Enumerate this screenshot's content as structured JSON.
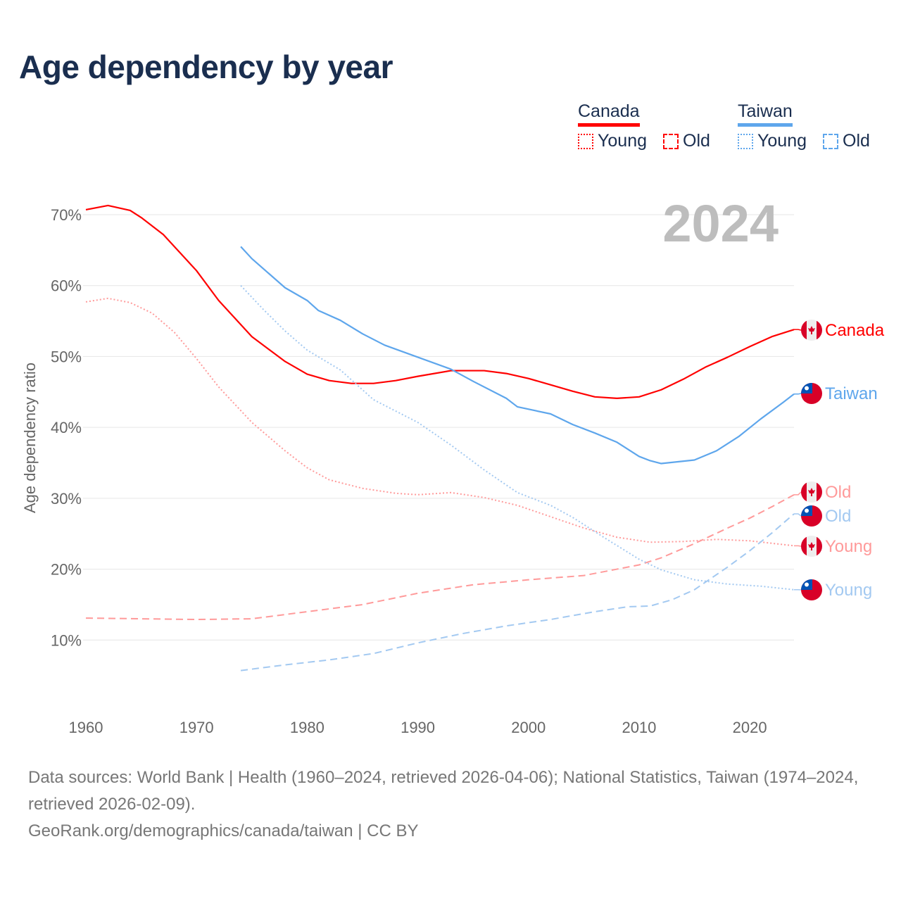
{
  "title": "Age dependency by year",
  "legend": {
    "countries": [
      {
        "name": "Canada",
        "color": "#ff0000",
        "light": "#ff9a9a",
        "young": "Young",
        "old": "Old"
      },
      {
        "name": "Taiwan",
        "color": "#5ea6ec",
        "light": "#a3c9f1",
        "young": "Young",
        "old": "Old"
      }
    ]
  },
  "year_label": "2024",
  "end_labels": {
    "canada_total": "Canada",
    "taiwan_total": "Taiwan",
    "canada_old": "Old",
    "taiwan_old": "Old",
    "canada_young": "Young",
    "taiwan_young": "Young"
  },
  "footer": {
    "sources": "Data sources: World Bank | Health (1960–2024, retrieved 2026-04-06); National Statistics, Taiwan (1974–2024, retrieved 2026-02-09).",
    "link": "GeoRank.org/demographics/canada/taiwan | CC BY"
  },
  "chart_data": {
    "type": "line",
    "title": "Age dependency by year",
    "xlabel": "",
    "ylabel": "Age dependency ratio",
    "xlim": [
      1960,
      2024
    ],
    "ylim": [
      0,
      70
    ],
    "x_ticks": [
      "1960",
      "1970",
      "1980",
      "1990",
      "2000",
      "2010",
      "2020"
    ],
    "y_ticks": [
      "10%",
      "20%",
      "30%",
      "40%",
      "50%",
      "60%",
      "70%"
    ],
    "grid": true,
    "legend_position": "top-right",
    "series": [
      {
        "name": "Canada total",
        "key": "canada_total",
        "style": "solid",
        "color": "#ff0000",
        "x": [
          1960,
          1962,
          1964,
          1965,
          1967,
          1970,
          1972,
          1975,
          1978,
          1980,
          1982,
          1984,
          1986,
          1988,
          1990,
          1993,
          1996,
          1998,
          2000,
          2002,
          2004,
          2006,
          2008,
          2010,
          2012,
          2014,
          2016,
          2018,
          2020,
          2022,
          2024
        ],
        "y": [
          70.7,
          71.3,
          70.6,
          69.6,
          67.2,
          62.1,
          57.9,
          52.8,
          49.3,
          47.5,
          46.6,
          46.2,
          46.2,
          46.6,
          47.2,
          48.0,
          48.0,
          47.6,
          46.9,
          46.0,
          45.1,
          44.3,
          44.1,
          44.3,
          45.3,
          46.8,
          48.5,
          49.9,
          51.4,
          52.8,
          53.8
        ]
      },
      {
        "name": "Canada young",
        "key": "canada_young",
        "style": "dotted",
        "color": "#ff9a9a",
        "x": [
          1960,
          1962,
          1964,
          1966,
          1968,
          1970,
          1972,
          1975,
          1978,
          1980,
          1982,
          1985,
          1988,
          1990,
          1993,
          1996,
          1999,
          2002,
          2005,
          2008,
          2011,
          2014,
          2017,
          2020,
          2024
        ],
        "y": [
          57.7,
          58.2,
          57.6,
          56.1,
          53.4,
          49.7,
          45.7,
          40.7,
          36.7,
          34.3,
          32.6,
          31.4,
          30.7,
          30.5,
          30.8,
          30.1,
          29.0,
          27.4,
          25.8,
          24.5,
          23.8,
          23.9,
          24.2,
          24.0,
          23.3
        ]
      },
      {
        "name": "Canada old",
        "key": "canada_old",
        "style": "dashed",
        "color": "#ff9a9a",
        "x": [
          1960,
          1965,
          1970,
          1975,
          1980,
          1985,
          1990,
          1995,
          2000,
          2005,
          2008,
          2010,
          2012,
          2015,
          2018,
          2020,
          2022,
          2024
        ],
        "y": [
          13.1,
          13.0,
          12.9,
          13.0,
          14.0,
          15.0,
          16.6,
          17.8,
          18.5,
          19.1,
          20.0,
          20.6,
          21.6,
          23.6,
          25.8,
          27.2,
          28.8,
          30.5
        ]
      },
      {
        "name": "Taiwan total",
        "key": "taiwan_total",
        "style": "solid",
        "color": "#5ea6ec",
        "x": [
          1974,
          1975,
          1978,
          1980,
          1981,
          1983,
          1985,
          1987,
          1990,
          1993,
          1995,
          1998,
          1999,
          2002,
          2004,
          2006,
          2008,
          2010,
          2011,
          2012,
          2015,
          2017,
          2019,
          2021,
          2023,
          2024
        ],
        "y": [
          65.5,
          63.8,
          59.7,
          57.9,
          56.5,
          55.1,
          53.2,
          51.6,
          49.9,
          48.2,
          46.5,
          44.1,
          42.9,
          41.9,
          40.4,
          39.2,
          37.9,
          35.9,
          35.3,
          34.9,
          35.4,
          36.7,
          38.7,
          41.2,
          43.5,
          44.7
        ]
      },
      {
        "name": "Taiwan young",
        "key": "taiwan_young",
        "style": "dotted",
        "color": "#a3c9f1",
        "x": [
          1974,
          1976,
          1978,
          1980,
          1983,
          1986,
          1990,
          1993,
          1996,
          1999,
          2002,
          2004,
          2007,
          2010,
          2012,
          2015,
          2018,
          2021,
          2024
        ],
        "y": [
          60.0,
          56.7,
          53.6,
          50.9,
          48.1,
          43.9,
          40.7,
          37.5,
          34.0,
          30.8,
          29.0,
          27.3,
          24.3,
          21.4,
          19.9,
          18.5,
          17.9,
          17.6,
          17.1
        ]
      },
      {
        "name": "Taiwan old",
        "key": "taiwan_old",
        "style": "dashed",
        "color": "#a3c9f1",
        "x": [
          1974,
          1978,
          1982,
          1986,
          1990,
          1994,
          1998,
          2002,
          2006,
          2009,
          2011,
          2013,
          2015,
          2018,
          2020,
          2022,
          2024
        ],
        "y": [
          5.7,
          6.5,
          7.2,
          8.1,
          9.6,
          10.9,
          12.0,
          12.9,
          14.0,
          14.7,
          14.8,
          15.7,
          17.1,
          20.3,
          22.6,
          25.1,
          27.8
        ]
      }
    ]
  }
}
